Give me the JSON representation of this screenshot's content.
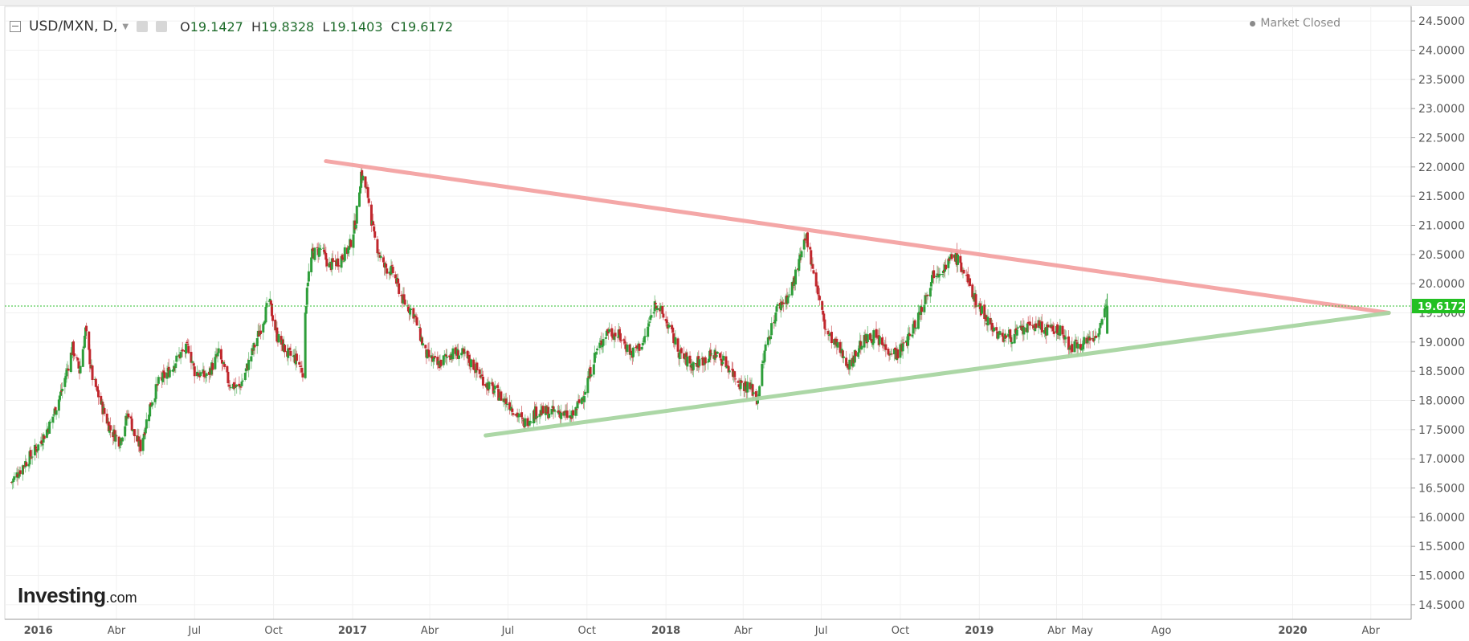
{
  "header": {
    "symbol": "USD/MXN, D,",
    "open_label": "O",
    "open": "19.1427",
    "high_label": "H",
    "high": "19.8328",
    "low_label": "L",
    "low": "19.1403",
    "close_label": "C",
    "close": "19.6172",
    "market_status": "Market Closed"
  },
  "logo": {
    "brand": "Investing",
    "suffix": ".com"
  },
  "colors": {
    "up": "#2e9e3a",
    "down": "#c0272d",
    "resistance": "#f4a3a3",
    "support": "#a8d5a2",
    "price_line": "#2fbf2f",
    "price_tag": "#22c022"
  },
  "chart_data": {
    "type": "line",
    "title": "USD/MXN, D,",
    "xlabel": "",
    "ylabel": "",
    "x_range": [
      "2015-11-23",
      "2020-05-18"
    ],
    "ylim": [
      14.25,
      24.75
    ],
    "x_ticks": [
      {
        "date": "2016-01-01",
        "label": "2016",
        "bold": true
      },
      {
        "date": "2016-04-01",
        "label": "Abr",
        "bold": false
      },
      {
        "date": "2016-07-01",
        "label": "Jul",
        "bold": false
      },
      {
        "date": "2016-10-01",
        "label": "Oct",
        "bold": false
      },
      {
        "date": "2017-01-01",
        "label": "2017",
        "bold": true
      },
      {
        "date": "2017-04-01",
        "label": "Abr",
        "bold": false
      },
      {
        "date": "2017-07-01",
        "label": "Jul",
        "bold": false
      },
      {
        "date": "2017-10-01",
        "label": "Oct",
        "bold": false
      },
      {
        "date": "2018-01-01",
        "label": "2018",
        "bold": true
      },
      {
        "date": "2018-04-01",
        "label": "Abr",
        "bold": false
      },
      {
        "date": "2018-07-01",
        "label": "Jul",
        "bold": false
      },
      {
        "date": "2018-10-01",
        "label": "Oct",
        "bold": false
      },
      {
        "date": "2019-01-01",
        "label": "2019",
        "bold": true
      },
      {
        "date": "2019-04-01",
        "label": "Abr",
        "bold": false
      },
      {
        "date": "2019-05-01",
        "label": "May",
        "bold": false
      },
      {
        "date": "2019-08-01",
        "label": "Ago",
        "bold": false
      },
      {
        "date": "2020-01-01",
        "label": "2020",
        "bold": true
      },
      {
        "date": "2020-04-01",
        "label": "Abr",
        "bold": false
      }
    ],
    "y_ticks": [
      "14.5000",
      "15.0000",
      "15.5000",
      "16.0000",
      "16.5000",
      "17.0000",
      "17.5000",
      "18.0000",
      "18.5000",
      "19.0000",
      "19.5000",
      "20.0000",
      "20.5000",
      "21.0000",
      "21.5000",
      "22.0000",
      "22.5000",
      "23.0000",
      "23.5000",
      "24.0000",
      "24.5000"
    ],
    "current_price": 19.6172,
    "current_price_label": "19.6172",
    "series": [
      {
        "type": "candlestick_close",
        "points": [
          [
            "2015-12-01",
            16.6
          ],
          [
            "2015-12-15",
            16.9
          ],
          [
            "2015-12-31",
            17.2
          ],
          [
            "2016-01-15",
            17.6
          ],
          [
            "2016-01-29",
            18.2
          ],
          [
            "2016-02-10",
            18.9
          ],
          [
            "2016-02-18",
            18.5
          ],
          [
            "2016-02-25",
            19.2
          ],
          [
            "2016-03-04",
            18.4
          ],
          [
            "2016-03-15",
            17.9
          ],
          [
            "2016-03-25",
            17.5
          ],
          [
            "2016-04-05",
            17.3
          ],
          [
            "2016-04-15",
            17.8
          ],
          [
            "2016-04-22",
            17.4
          ],
          [
            "2016-04-29",
            17.2
          ],
          [
            "2016-05-10",
            17.9
          ],
          [
            "2016-05-20",
            18.3
          ],
          [
            "2016-06-01",
            18.5
          ],
          [
            "2016-06-15",
            18.8
          ],
          [
            "2016-06-24",
            18.9
          ],
          [
            "2016-07-01",
            18.5
          ],
          [
            "2016-07-15",
            18.4
          ],
          [
            "2016-07-29",
            18.8
          ],
          [
            "2016-08-10",
            18.3
          ],
          [
            "2016-08-22",
            18.2
          ],
          [
            "2016-09-01",
            18.6
          ],
          [
            "2016-09-15",
            19.2
          ],
          [
            "2016-09-26",
            19.7
          ],
          [
            "2016-10-05",
            19.1
          ],
          [
            "2016-10-17",
            18.8
          ],
          [
            "2016-10-28",
            18.7
          ],
          [
            "2016-11-04",
            18.5
          ],
          [
            "2016-11-09",
            20.0
          ],
          [
            "2016-11-15",
            20.5
          ],
          [
            "2016-11-25",
            20.6
          ],
          [
            "2016-12-05",
            20.3
          ],
          [
            "2016-12-16",
            20.4
          ],
          [
            "2016-12-28",
            20.6
          ],
          [
            "2017-01-05",
            21.1
          ],
          [
            "2017-01-11",
            21.9
          ],
          [
            "2017-01-19",
            21.5
          ],
          [
            "2017-01-26",
            20.8
          ],
          [
            "2017-02-06",
            20.3
          ],
          [
            "2017-02-17",
            20.2
          ],
          [
            "2017-03-01",
            19.7
          ],
          [
            "2017-03-13",
            19.5
          ],
          [
            "2017-03-27",
            18.8
          ],
          [
            "2017-04-10",
            18.6
          ],
          [
            "2017-04-24",
            18.8
          ],
          [
            "2017-05-08",
            18.8
          ],
          [
            "2017-05-22",
            18.6
          ],
          [
            "2017-06-05",
            18.3
          ],
          [
            "2017-06-20",
            18.1
          ],
          [
            "2017-07-05",
            17.9
          ],
          [
            "2017-07-19",
            17.6
          ],
          [
            "2017-08-02",
            17.8
          ],
          [
            "2017-08-16",
            17.8
          ],
          [
            "2017-08-30",
            17.8
          ],
          [
            "2017-09-13",
            17.7
          ],
          [
            "2017-09-27",
            18.1
          ],
          [
            "2017-10-11",
            18.8
          ],
          [
            "2017-10-25",
            19.2
          ],
          [
            "2017-11-08",
            19.1
          ],
          [
            "2017-11-22",
            18.8
          ],
          [
            "2017-12-06",
            19.0
          ],
          [
            "2017-12-20",
            19.7
          ],
          [
            "2018-01-03",
            19.3
          ],
          [
            "2018-01-17",
            18.8
          ],
          [
            "2018-01-31",
            18.6
          ],
          [
            "2018-02-14",
            18.7
          ],
          [
            "2018-02-28",
            18.8
          ],
          [
            "2018-03-14",
            18.6
          ],
          [
            "2018-03-28",
            18.3
          ],
          [
            "2018-04-11",
            18.2
          ],
          [
            "2018-04-17",
            18.0
          ],
          [
            "2018-04-27",
            18.9
          ],
          [
            "2018-05-11",
            19.6
          ],
          [
            "2018-05-25",
            19.8
          ],
          [
            "2018-06-06",
            20.4
          ],
          [
            "2018-06-14",
            20.8
          ],
          [
            "2018-06-25",
            20.0
          ],
          [
            "2018-07-06",
            19.2
          ],
          [
            "2018-07-20",
            18.9
          ],
          [
            "2018-08-03",
            18.6
          ],
          [
            "2018-08-17",
            19.0
          ],
          [
            "2018-08-31",
            19.1
          ],
          [
            "2018-09-14",
            18.9
          ],
          [
            "2018-09-28",
            18.8
          ],
          [
            "2018-10-12",
            19.1
          ],
          [
            "2018-10-26",
            19.6
          ],
          [
            "2018-11-09",
            20.2
          ],
          [
            "2018-11-23",
            20.3
          ],
          [
            "2018-12-03",
            20.5
          ],
          [
            "2018-12-14",
            20.2
          ],
          [
            "2018-12-28",
            19.7
          ],
          [
            "2019-01-10",
            19.4
          ],
          [
            "2019-01-24",
            19.1
          ],
          [
            "2019-02-07",
            19.1
          ],
          [
            "2019-02-21",
            19.2
          ],
          [
            "2019-03-07",
            19.3
          ],
          [
            "2019-03-21",
            19.2
          ],
          [
            "2019-04-04",
            19.2
          ],
          [
            "2019-04-18",
            18.9
          ],
          [
            "2019-05-02",
            19.0
          ],
          [
            "2019-05-16",
            19.1
          ],
          [
            "2019-05-30",
            19.6
          ]
        ]
      },
      {
        "type": "trendline_resistance",
        "points": [
          [
            "2016-12-01",
            22.1
          ],
          [
            "2020-04-22",
            19.5
          ]
        ]
      },
      {
        "type": "trendline_support",
        "points": [
          [
            "2017-06-05",
            17.4
          ],
          [
            "2020-04-22",
            19.5
          ]
        ]
      }
    ],
    "grid": true
  }
}
